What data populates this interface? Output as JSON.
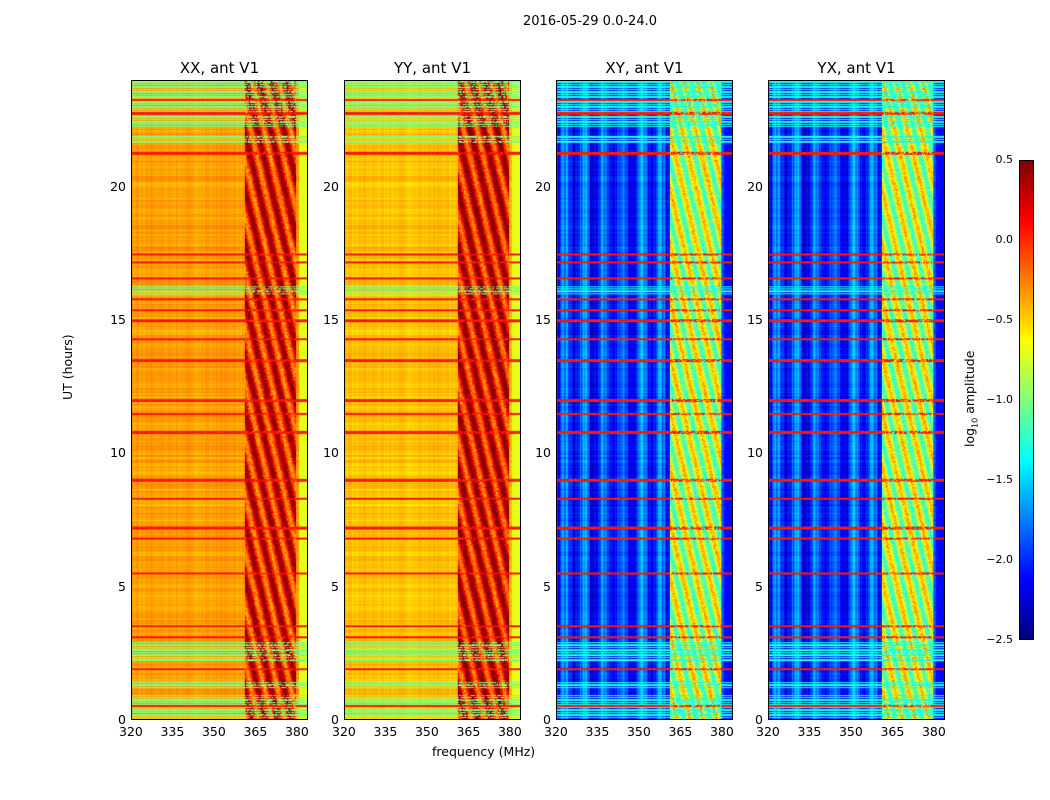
{
  "chart_data": {
    "type": "heatmap",
    "title": "2016-05-29 0.0-24.0",
    "xlabel": "frequency (MHz)",
    "ylabel": "UT (hours)",
    "xlim": [
      320,
      384
    ],
    "ylim": [
      0,
      24
    ],
    "xticks": [
      "320",
      "335",
      "350",
      "365",
      "380"
    ],
    "xtick_values": [
      320,
      335,
      350,
      365,
      380
    ],
    "yticks": [
      "0",
      "5",
      "10",
      "15",
      "20"
    ],
    "ytick_values": [
      0,
      5,
      10,
      15,
      20
    ],
    "colorbar": {
      "label": "log",
      "label_sub": "10",
      "label_rest": " amplitude",
      "range": [
        -2.5,
        0.5
      ],
      "ticks": [
        "0.5",
        "0.0",
        "−0.5",
        "−1.0",
        "−1.5",
        "−2.0",
        "−2.5"
      ],
      "tick_values": [
        0.5,
        0,
        -0.5,
        -1,
        -1.5,
        -2,
        -2.5
      ],
      "colormap": "jet"
    },
    "panels": [
      {
        "title": "XX, ant V1",
        "base_level": -0.35,
        "rfi_band_level": 0.1,
        "show_ylabel": true
      },
      {
        "title": "YY, ant V1",
        "base_level": -0.45,
        "rfi_band_level": 0.15,
        "show_ylabel": false
      },
      {
        "title": "XY, ant V1",
        "base_level": -1.95,
        "rfi_band_level": -0.8,
        "show_ylabel": false
      },
      {
        "title": "YX, ant V1",
        "base_level": -1.95,
        "rfi_band_level": -0.8,
        "show_ylabel": false
      }
    ],
    "rfi_band_mhz": [
      361,
      380
    ],
    "flagged_green_hours": [
      [
        0,
        0.9
      ],
      [
        1.2,
        1.4
      ],
      [
        2.2,
        2.9
      ],
      [
        16.0,
        16.3
      ],
      [
        21.7,
        22.0
      ],
      [
        22.3,
        24
      ]
    ],
    "red_line_hours": [
      0.5,
      1.9,
      3.1,
      3.5,
      5.5,
      6.8,
      7.2,
      8.3,
      9.0,
      10.8,
      11.5,
      12.0,
      13.5,
      14.3,
      15.0,
      15.4,
      15.8,
      16.6,
      17.2,
      17.5,
      21.3,
      22.8,
      23.3
    ]
  }
}
